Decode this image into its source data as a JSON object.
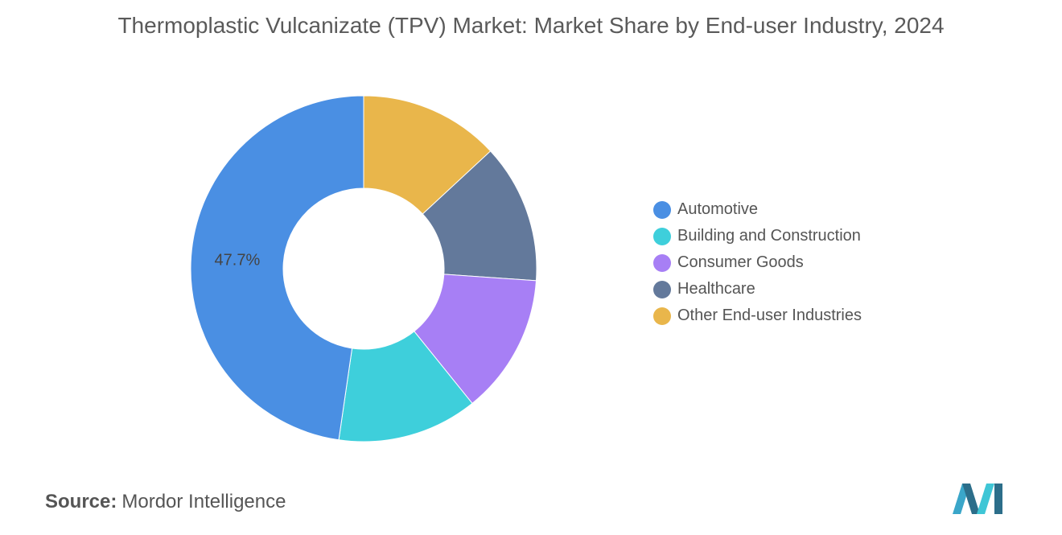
{
  "title": "Thermoplastic Vulcanizate (TPV) Market: Market Share by End-user Industry, 2024",
  "source": {
    "label": "Source:",
    "value": "Mordor Intelligence"
  },
  "chart_data": {
    "type": "pie",
    "donut": true,
    "title": "Thermoplastic Vulcanizate (TPV) Market: Market Share by End-user Industry, 2024",
    "legend_position": "right",
    "categories": [
      "Automotive",
      "Building and Construction",
      "Consumer Goods",
      "Healthcare",
      "Other End-user Industries"
    ],
    "values": [
      47.7,
      13.1,
      13.1,
      13.0,
      13.1
    ],
    "colors": [
      "#4a8fe3",
      "#3ecfdb",
      "#a77ff5",
      "#63799b",
      "#e9b64b"
    ],
    "data_labels": [
      "47.7%",
      "",
      "",
      "",
      ""
    ]
  }
}
